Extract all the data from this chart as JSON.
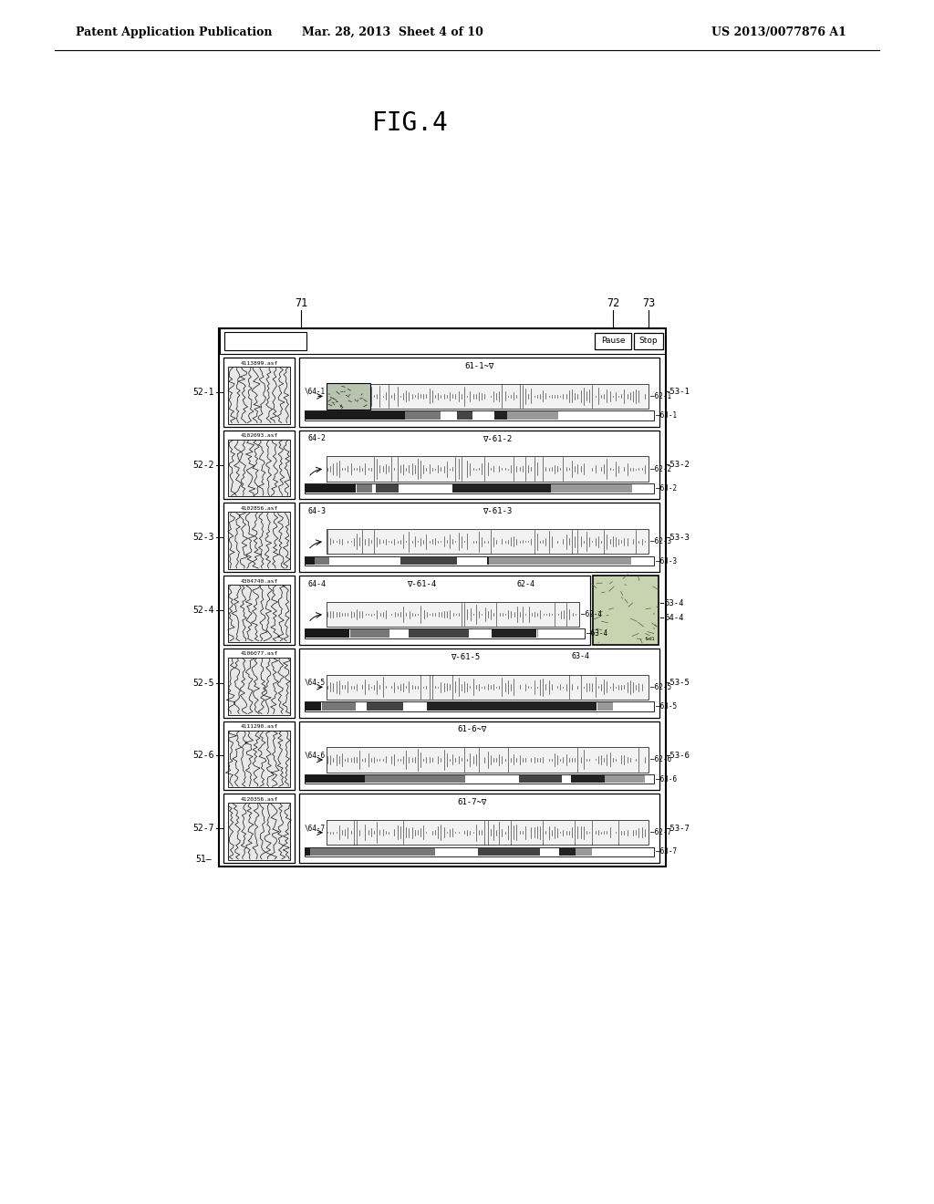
{
  "header_left": "Patent Application Publication",
  "header_center": "Mar. 28, 2013  Sheet 4 of 10",
  "header_right": "US 2013/0077876 A1",
  "fig_title": "FIG.4",
  "n_rows": 7,
  "row_labels": [
    "52-1",
    "52-2",
    "52-3",
    "52-4",
    "52-5",
    "52-6",
    "52-7"
  ],
  "right_labels": [
    "53-1",
    "53-2",
    "53-3",
    "53-4",
    "53-5",
    "53-6",
    "53-7"
  ],
  "file_names": [
    "4113899.asf",
    "4102093.asf",
    "4102856.asf",
    "4304740.asf",
    "4106077.asf",
    "4111290.asf",
    "4120356.asf"
  ],
  "wave_top_labels": [
    "61-1~∇",
    "64-2  ∇-61-2",
    "64-3  ∇-61-3",
    "64-4  ∇-61-4  62-4",
    "∇-61-5  63-4",
    "61-6~∇",
    "61-7~∇"
  ],
  "arrow_labels": [
    "64-1",
    "64-2",
    "64-3",
    "64-4",
    "64-5",
    "64-6",
    "64-7"
  ],
  "waveform_labels": [
    "62-1",
    "62-2",
    "62-3",
    "62-4",
    "62-5",
    "62-6",
    "62-7"
  ],
  "bar_labels": [
    "63-1",
    "63-2",
    "63-3",
    "63-4",
    "63-5",
    "63-6",
    "63-7"
  ],
  "label_71": "71",
  "label_72": "72",
  "label_73": "73",
  "label_51": "51",
  "label_54_4": "54-4",
  "label_53_4": "53-4"
}
